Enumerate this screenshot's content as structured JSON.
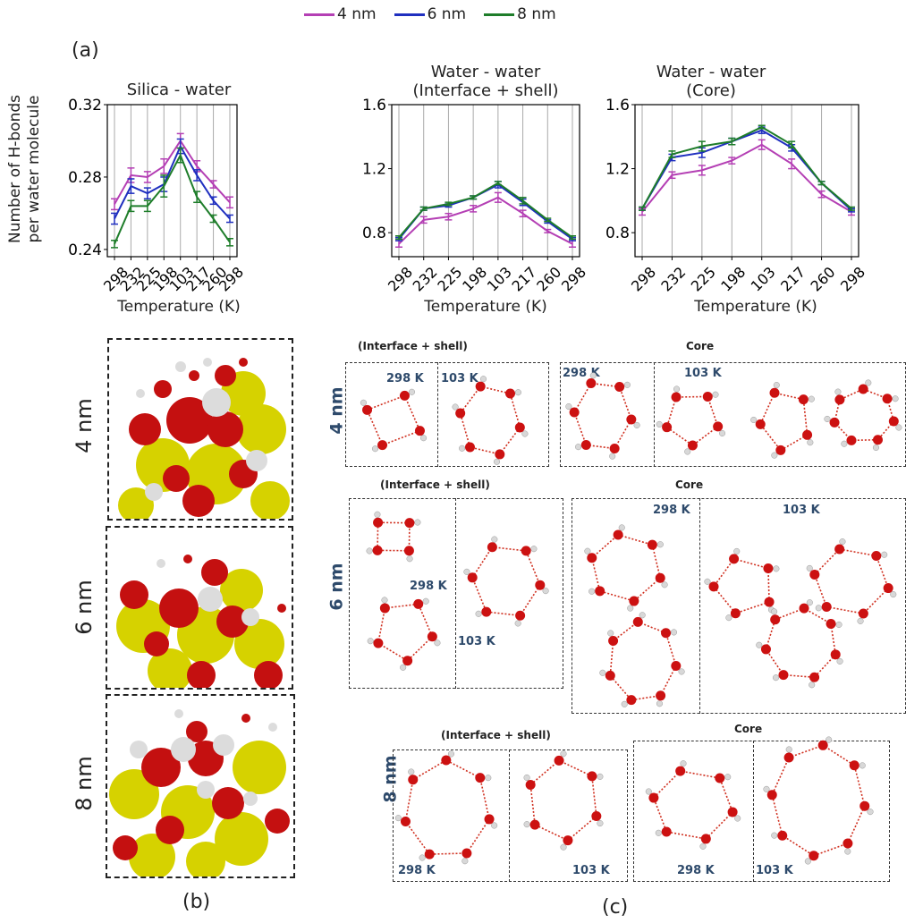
{
  "legend": [
    {
      "name": "4 nm",
      "color": "#b43fb4"
    },
    {
      "name": "6 nm",
      "color": "#1f2fbf"
    },
    {
      "name": "8 nm",
      "color": "#1e7d2a"
    }
  ],
  "panels": {
    "a": "(a)",
    "b": "(b)",
    "c": "(c)"
  },
  "ylabel": "Number of H-bonds\nper water molecule",
  "chart_data": [
    {
      "type": "line",
      "title": "Silica - water",
      "xlabel": "Temperature (K)",
      "ylabel": "Number of H-bonds per water molecule",
      "categories": [
        "298",
        "232",
        "225",
        "198",
        "103",
        "217",
        "260",
        "298"
      ],
      "yticks": [
        "0.24",
        "0.28",
        "0.32"
      ],
      "ylim": [
        0.236,
        0.32
      ],
      "series": [
        {
          "name": "4 nm",
          "values": [
            0.265,
            0.281,
            0.28,
            0.286,
            0.3,
            0.286,
            0.276,
            0.266
          ],
          "err": [
            0.003,
            0.004,
            0.003,
            0.004,
            0.004,
            0.003,
            0.002,
            0.003
          ]
        },
        {
          "name": "6 nm",
          "values": [
            0.257,
            0.275,
            0.271,
            0.276,
            0.297,
            0.281,
            0.267,
            0.257
          ],
          "err": [
            0.003,
            0.004,
            0.003,
            0.004,
            0.004,
            0.003,
            0.002,
            0.002
          ]
        },
        {
          "name": "8 nm",
          "values": [
            0.243,
            0.264,
            0.264,
            0.275,
            0.292,
            0.269,
            0.257,
            0.244
          ],
          "err": [
            0.002,
            0.003,
            0.003,
            0.006,
            0.004,
            0.003,
            0.002,
            0.002
          ]
        }
      ],
      "grid": "vertical"
    },
    {
      "type": "line",
      "title": "Water - water\n(Interface + shell)",
      "xlabel": "Temperature (K)",
      "categories": [
        "298",
        "232",
        "225",
        "198",
        "103",
        "217",
        "260",
        "298"
      ],
      "yticks": [
        "0.8",
        "1.2",
        "1.6"
      ],
      "ylim": [
        0.65,
        1.6
      ],
      "series": [
        {
          "name": "4 nm",
          "values": [
            0.73,
            0.88,
            0.9,
            0.95,
            1.02,
            0.92,
            0.81,
            0.73
          ],
          "err": [
            0.02,
            0.02,
            0.02,
            0.02,
            0.03,
            0.02,
            0.01,
            0.02
          ]
        },
        {
          "name": "6 nm",
          "values": [
            0.76,
            0.95,
            0.97,
            1.02,
            1.1,
            0.99,
            0.87,
            0.76
          ],
          "err": [
            0.01,
            0.01,
            0.01,
            0.01,
            0.02,
            0.02,
            0.01,
            0.01
          ]
        },
        {
          "name": "8 nm",
          "values": [
            0.77,
            0.95,
            0.98,
            1.02,
            1.11,
            1.0,
            0.88,
            0.77
          ],
          "err": [
            0.01,
            0.01,
            0.01,
            0.01,
            0.01,
            0.02,
            0.01,
            0.01
          ]
        }
      ],
      "grid": "vertical"
    },
    {
      "type": "line",
      "title": "Water - water\n(Core)",
      "xlabel": "Temperature (K)",
      "categories": [
        "298",
        "232",
        "225",
        "198",
        "103",
        "217",
        "260",
        "298"
      ],
      "yticks": [
        "0.8",
        "1.2",
        "1.6"
      ],
      "ylim": [
        0.65,
        1.6
      ],
      "series": [
        {
          "name": "4 nm",
          "values": [
            0.93,
            1.16,
            1.19,
            1.25,
            1.35,
            1.23,
            1.04,
            0.93
          ],
          "err": [
            0.02,
            0.02,
            0.03,
            0.02,
            0.03,
            0.03,
            0.02,
            0.02
          ]
        },
        {
          "name": "6 nm",
          "values": [
            0.95,
            1.27,
            1.3,
            1.37,
            1.44,
            1.33,
            1.11,
            0.94
          ],
          "err": [
            0.01,
            0.02,
            0.03,
            0.02,
            0.02,
            0.02,
            0.01,
            0.01
          ]
        },
        {
          "name": "8 nm",
          "values": [
            0.95,
            1.29,
            1.34,
            1.37,
            1.46,
            1.35,
            1.11,
            0.95
          ],
          "err": [
            0.01,
            0.02,
            0.03,
            0.02,
            0.01,
            0.02,
            0.01,
            0.01
          ]
        }
      ],
      "grid": "vertical"
    }
  ],
  "panel_b": {
    "rows": [
      "4 nm",
      "6 nm",
      "8 nm"
    ]
  },
  "panel_c": {
    "row_labels": [
      "4 nm",
      "6 nm",
      "8 nm"
    ],
    "interface_label": "(Interface + shell)",
    "core_label": "Core",
    "t298": "298 K",
    "t103": "103 K"
  },
  "colors": {
    "oxygen": "#cc1111",
    "hydrogen": "#d8d8d8",
    "silicon": "#d6d200",
    "hbond": "#d03020"
  }
}
